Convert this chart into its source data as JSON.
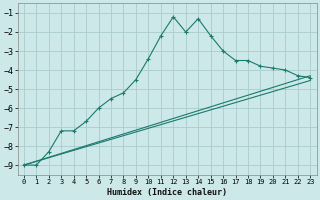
{
  "line1_x": [
    0,
    1,
    2,
    3,
    4,
    5,
    6,
    7,
    8,
    9,
    10,
    11,
    12,
    13,
    14,
    15,
    16,
    17,
    18,
    19,
    20,
    21,
    22,
    23
  ],
  "line1_y": [
    -9.0,
    -9.0,
    -8.3,
    -7.2,
    -7.2,
    -6.7,
    -6.0,
    -5.5,
    -5.2,
    -4.5,
    -3.4,
    -2.2,
    -1.2,
    -2.0,
    -1.3,
    -2.2,
    -3.0,
    -3.5,
    -3.5,
    -3.8,
    -3.9,
    -4.0,
    -4.3,
    -4.4
  ],
  "line2_x": [
    0,
    23
  ],
  "line2_y": [
    -9.0,
    -4.3
  ],
  "line3_x": [
    0,
    23
  ],
  "line3_y": [
    -9.0,
    -4.55
  ],
  "color": "#1a7a6e",
  "bg_color": "#cce8e8",
  "grid_color": "#aacccc",
  "xlabel": "Humidex (Indice chaleur)",
  "xlim": [
    -0.5,
    23.5
  ],
  "ylim": [
    -9.5,
    -0.5
  ],
  "yticks": [
    -9,
    -8,
    -7,
    -6,
    -5,
    -4,
    -3,
    -2,
    -1
  ],
  "xticks": [
    0,
    1,
    2,
    3,
    4,
    5,
    6,
    7,
    8,
    9,
    10,
    11,
    12,
    13,
    14,
    15,
    16,
    17,
    18,
    19,
    20,
    21,
    22,
    23
  ]
}
